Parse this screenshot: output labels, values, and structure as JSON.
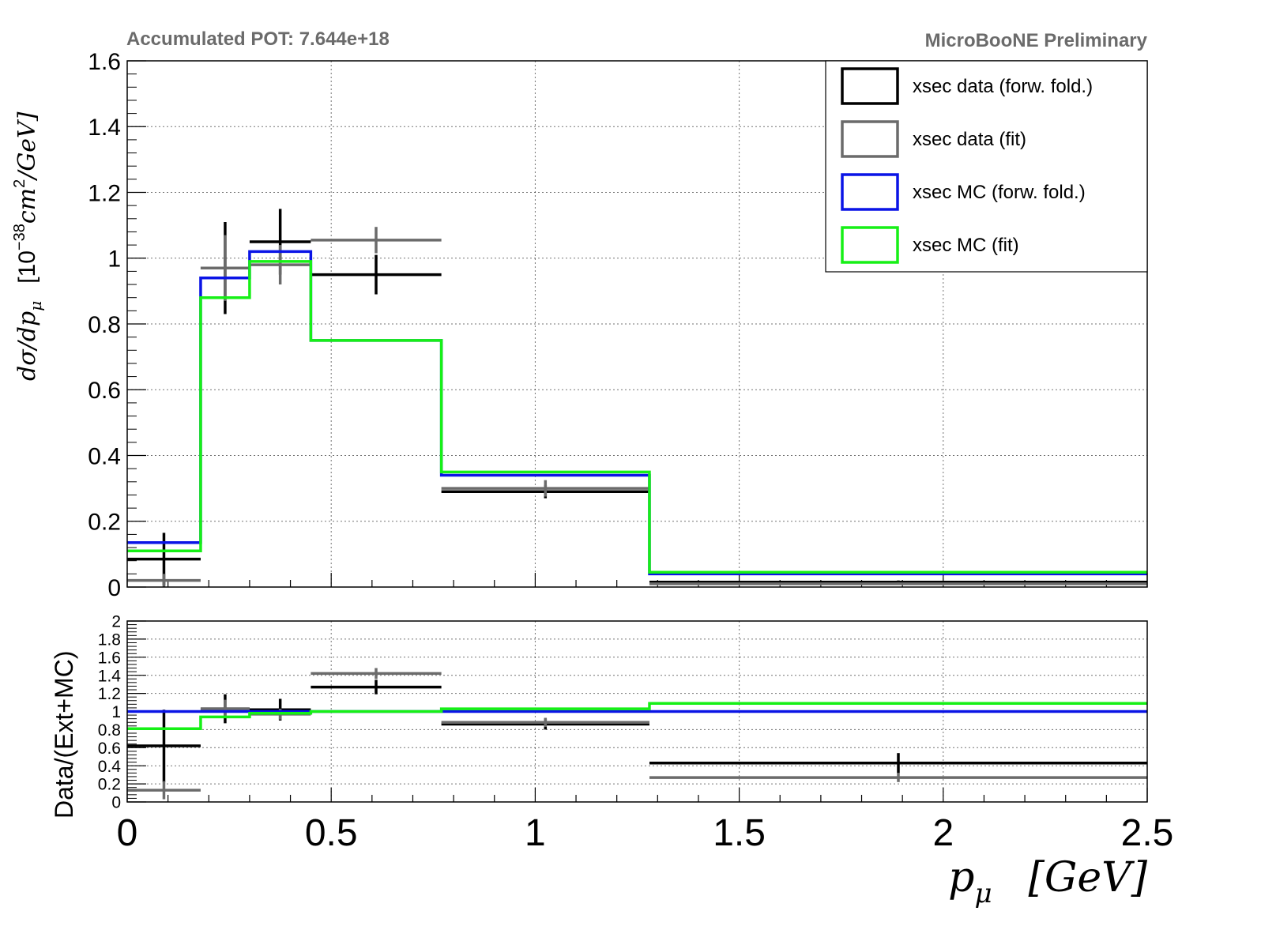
{
  "header": {
    "left": "Accumulated POT: 7.644e+18",
    "right": "MicroBooNE Preliminary"
  },
  "colors": {
    "data_fwd": "#000000",
    "data_fit": "#6b6b6b",
    "mc_fwd": "#0a14e6",
    "mc_fit": "#16f016"
  },
  "legend": {
    "placement": "top-right",
    "entries": [
      {
        "label": "xsec data (forw. fold.)",
        "color": "#000000"
      },
      {
        "label": "xsec data (fit)",
        "color": "#6b6b6b"
      },
      {
        "label": "xsec MC (forw. fold.)",
        "color": "#0a14e6"
      },
      {
        "label": "xsec MC (fit)",
        "color": "#16f016"
      }
    ]
  },
  "axes": {
    "top_ylabel_prefix": "dσ/dp",
    "top_ylabel_sub": "μ",
    "top_ylabel_unit_open": "[10",
    "top_ylabel_unit_exp": "−38",
    "top_ylabel_unit_mid": "cm",
    "top_ylabel_unit_exp2": "2",
    "top_ylabel_unit_close": "/GeV]",
    "bottom_ylabel": "Data/(Ext+MC)",
    "xlabel_var": "p",
    "xlabel_sub": "μ",
    "xlabel_unit": "[GeV]"
  },
  "chart_data": [
    {
      "type": "histogram",
      "panel": "cross-section",
      "bin_edges": [
        0,
        0.18,
        0.3,
        0.45,
        0.77,
        1.28,
        2.5
      ],
      "xlim": [
        0,
        2.5
      ],
      "ylim": [
        0,
        1.6
      ],
      "x_ticks": [
        "0",
        "0.5",
        "1",
        "1.5",
        "2",
        "2.5"
      ],
      "y_ticks": [
        "0",
        "0.2",
        "0.4",
        "0.6",
        "0.8",
        "1",
        "1.2",
        "1.4",
        "1.6"
      ],
      "grid": true,
      "series": [
        {
          "name": "xsec data (forw. fold.)",
          "style": "points",
          "x": [
            0.09,
            0.24,
            0.375,
            0.61,
            1.025,
            1.89
          ],
          "values": [
            0.085,
            0.97,
            1.05,
            0.95,
            0.29,
            0.015
          ],
          "errors": [
            0.08,
            0.14,
            0.1,
            0.06,
            0.02,
            0.005
          ]
        },
        {
          "name": "xsec data (fit)",
          "style": "points",
          "x": [
            0.09,
            0.24,
            0.375,
            0.61,
            1.025,
            1.89
          ],
          "values": [
            0.02,
            0.97,
            0.98,
            1.055,
            0.3,
            0.01
          ],
          "errors": [
            0.02,
            0.1,
            0.06,
            0.04,
            0.025,
            0.004
          ]
        },
        {
          "name": "xsec MC (forw. fold.)",
          "style": "step",
          "values": [
            0.135,
            0.94,
            1.02,
            0.75,
            0.34,
            0.04
          ]
        },
        {
          "name": "xsec MC (fit)",
          "style": "step",
          "values": [
            0.11,
            0.88,
            0.99,
            0.75,
            0.35,
            0.045
          ]
        }
      ]
    },
    {
      "type": "histogram",
      "panel": "ratio",
      "bin_edges": [
        0,
        0.18,
        0.3,
        0.45,
        0.77,
        1.28,
        2.5
      ],
      "xlim": [
        0,
        2.5
      ],
      "ylim": [
        0,
        2
      ],
      "y_ticks": [
        "0",
        "0.2",
        "0.4",
        "0.6",
        "0.8",
        "1",
        "1.2",
        "1.4",
        "1.6",
        "1.8",
        "2"
      ],
      "grid": true,
      "series": [
        {
          "name": "xsec data (forw. fold.)",
          "style": "points",
          "x": [
            0.09,
            0.24,
            0.375,
            0.61,
            1.025,
            1.89
          ],
          "values": [
            0.62,
            1.03,
            1.02,
            1.27,
            0.86,
            0.43
          ],
          "errors": [
            0.4,
            0.16,
            0.12,
            0.08,
            0.06,
            0.11
          ]
        },
        {
          "name": "xsec data (fit)",
          "style": "points",
          "x": [
            0.09,
            0.24,
            0.375,
            0.61,
            1.025,
            1.89
          ],
          "values": [
            0.13,
            1.03,
            0.97,
            1.42,
            0.88,
            0.27
          ],
          "errors": [
            0.1,
            0.1,
            0.06,
            0.06,
            0.05,
            0.05
          ]
        },
        {
          "name": "xsec MC (forw. fold.)",
          "style": "step",
          "values": [
            1.0,
            1.0,
            1.0,
            1.0,
            1.0,
            1.0
          ]
        },
        {
          "name": "xsec MC (fit)",
          "style": "step",
          "values": [
            0.81,
            0.94,
            0.98,
            1.0,
            1.03,
            1.09
          ]
        }
      ]
    }
  ]
}
